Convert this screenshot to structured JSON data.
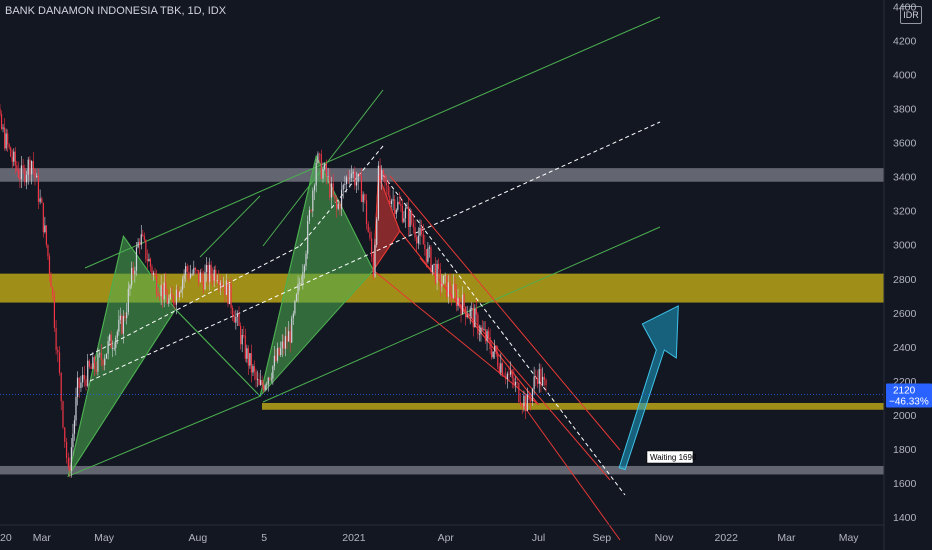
{
  "header": {
    "title": "BANK DANAMON INDONESIA TBK, 1D, IDX"
  },
  "currency_badge": "IDR",
  "price_label": {
    "price": "2120",
    "change": "−46.33%"
  },
  "annotation": {
    "text": "Waiting 1690"
  },
  "colors": {
    "background": "#131722",
    "up_candle": "#d1d4dc",
    "down_candle": "#f23645",
    "gray_zone": "#787b86",
    "gold_zone": "#b8a316",
    "green_pattern": "#4caf50",
    "red_pattern": "#e53935",
    "arrow": "#1e9ec9",
    "price_label": "#2962ff"
  },
  "chart_data": {
    "type": "candlestick",
    "title": "BANK DANAMON INDONESIA TBK, 1D, IDX",
    "x_tick_labels": [
      "20",
      "Mar",
      "May",
      "Aug",
      "5",
      "2021",
      "Apr",
      "Jul",
      "Sep",
      "Nov",
      "2022",
      "Mar",
      "May"
    ],
    "y_tick_labels": [
      "1400",
      "1600",
      "1800",
      "2000",
      "2200",
      "2400",
      "2600",
      "2800",
      "3000",
      "3200",
      "3400",
      "3600",
      "3800",
      "4000",
      "4200",
      "4400"
    ],
    "ylim": [
      1400,
      4450
    ],
    "last_price": 2120,
    "close_path": [
      {
        "x": "2020-01-02",
        "y": 4000
      },
      {
        "x": "2020-01-10",
        "y": 4150
      },
      {
        "x": "2020-01-20",
        "y": 3700
      },
      {
        "x": "2020-02-01",
        "y": 3500
      },
      {
        "x": "2020-02-10",
        "y": 3400
      },
      {
        "x": "2020-02-20",
        "y": 3500
      },
      {
        "x": "2020-03-01",
        "y": 3200
      },
      {
        "x": "2020-03-10",
        "y": 2800
      },
      {
        "x": "2020-03-20",
        "y": 2100
      },
      {
        "x": "2020-03-27",
        "y": 1640
      },
      {
        "x": "2020-04-05",
        "y": 2150
      },
      {
        "x": "2020-04-15",
        "y": 2250
      },
      {
        "x": "2020-04-25",
        "y": 2300
      },
      {
        "x": "2020-05-05",
        "y": 2400
      },
      {
        "x": "2020-05-20",
        "y": 2550
      },
      {
        "x": "2020-06-05",
        "y": 3050
      },
      {
        "x": "2020-06-20",
        "y": 2800
      },
      {
        "x": "2020-07-05",
        "y": 2650
      },
      {
        "x": "2020-07-20",
        "y": 2850
      },
      {
        "x": "2020-08-05",
        "y": 2800
      },
      {
        "x": "2020-08-20",
        "y": 2850
      },
      {
        "x": "2020-09-01",
        "y": 2700
      },
      {
        "x": "2020-09-15",
        "y": 2400
      },
      {
        "x": "2020-09-30",
        "y": 2150
      },
      {
        "x": "2020-10-15",
        "y": 2300
      },
      {
        "x": "2020-11-01",
        "y": 2500
      },
      {
        "x": "2020-11-15",
        "y": 3000
      },
      {
        "x": "2020-11-25",
        "y": 3500
      },
      {
        "x": "2020-12-05",
        "y": 3400
      },
      {
        "x": "2020-12-15",
        "y": 3200
      },
      {
        "x": "2020-12-28",
        "y": 3450
      },
      {
        "x": "2021-01-10",
        "y": 3300
      },
      {
        "x": "2021-01-20",
        "y": 2850
      },
      {
        "x": "2021-01-25",
        "y": 3400
      },
      {
        "x": "2021-02-10",
        "y": 3250
      },
      {
        "x": "2021-02-25",
        "y": 3150
      },
      {
        "x": "2021-03-10",
        "y": 3000
      },
      {
        "x": "2021-03-25",
        "y": 2800
      },
      {
        "x": "2021-04-10",
        "y": 2700
      },
      {
        "x": "2021-04-25",
        "y": 2600
      },
      {
        "x": "2021-05-10",
        "y": 2450
      },
      {
        "x": "2021-05-25",
        "y": 2300
      },
      {
        "x": "2021-06-10",
        "y": 2150
      },
      {
        "x": "2021-06-20",
        "y": 2060
      },
      {
        "x": "2021-06-30",
        "y": 2250
      },
      {
        "x": "2021-07-10",
        "y": 2120
      }
    ],
    "zones": [
      {
        "color": "gray",
        "from": 3370,
        "to": 3450
      },
      {
        "color": "gold",
        "from": 2660,
        "to": 2830
      },
      {
        "color": "gold",
        "from": 2030,
        "to": 2070
      },
      {
        "color": "gray",
        "from": 1650,
        "to": 1700
      }
    ],
    "harmonic_patterns": [
      {
        "color": "green",
        "points": [
          {
            "x": "2020-03-27",
            "y": 1640
          },
          {
            "x": "2020-05-20",
            "y": 3050
          },
          {
            "x": "2020-07-10",
            "y": 2620
          },
          {
            "x": "2020-10-01",
            "y": 2110
          }
        ]
      },
      {
        "color": "green",
        "points": [
          {
            "x": "2020-10-01",
            "y": 2110
          },
          {
            "x": "2020-11-25",
            "y": 3520
          },
          {
            "x": "2021-01-20",
            "y": 2850
          }
        ]
      },
      {
        "color": "red",
        "points": [
          {
            "x": "2021-01-20",
            "y": 2850
          },
          {
            "x": "2021-01-25",
            "y": 3410
          },
          {
            "x": "2021-02-15",
            "y": 3080
          },
          {
            "x": "2021-07-01",
            "y": 2060
          }
        ]
      }
    ],
    "projection": {
      "from": {
        "x": "2021-09-20",
        "y": 1690
      },
      "to": {
        "x": "2021-11-15",
        "y": 2640
      }
    }
  }
}
